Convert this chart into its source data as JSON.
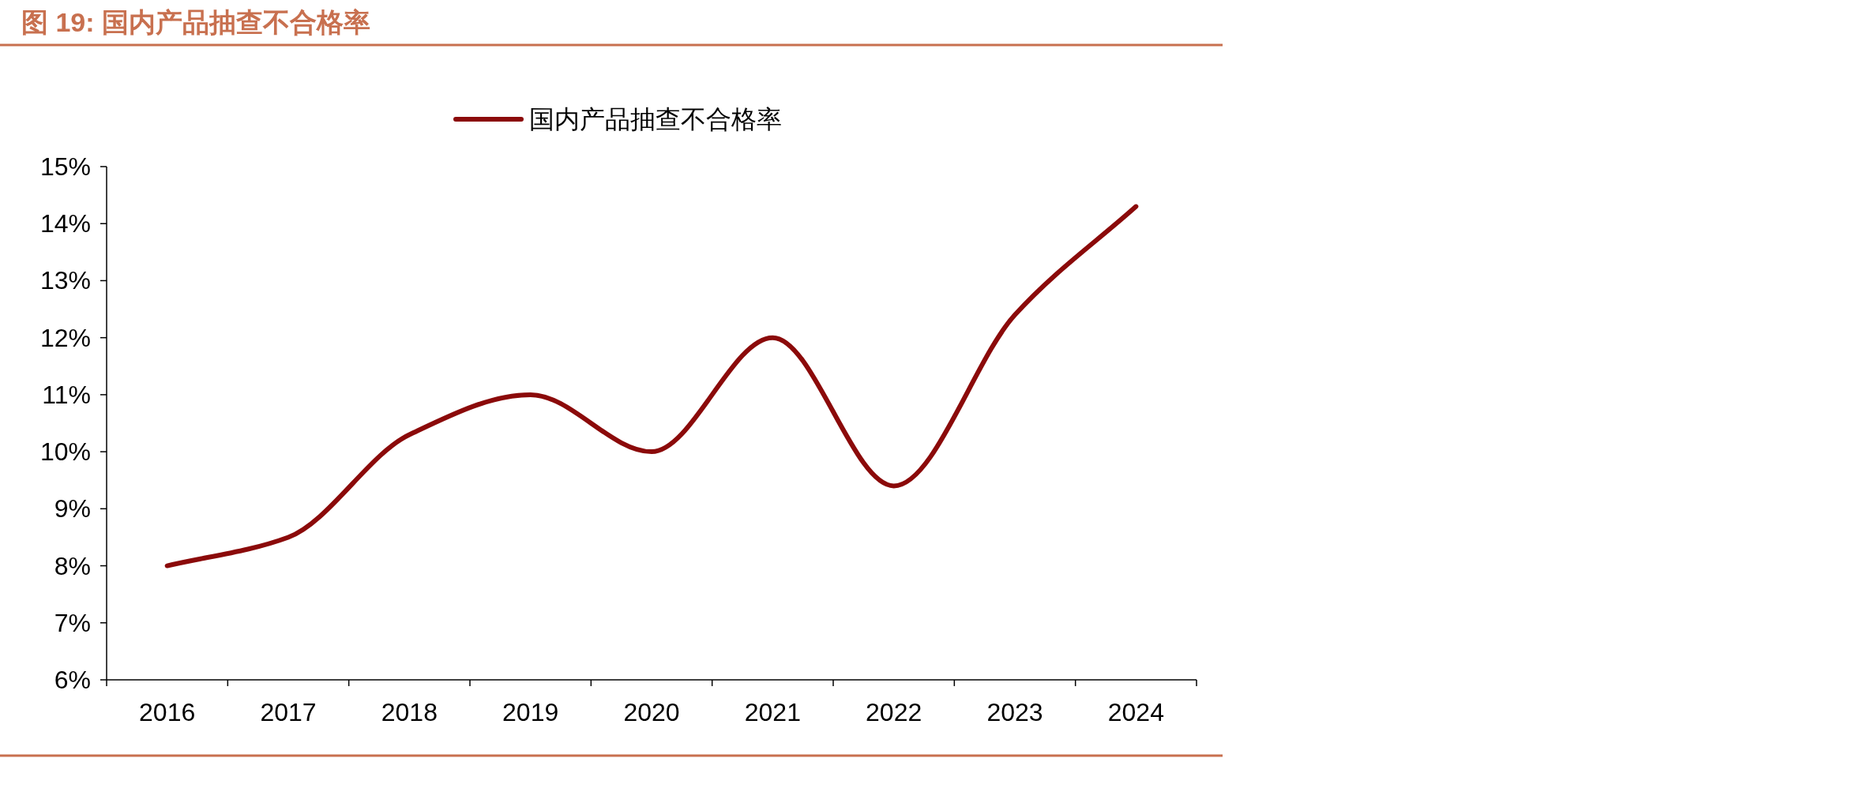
{
  "chart_data": {
    "type": "line",
    "title": "图 19:  国内产品抽查不合格率",
    "categories": [
      "2016",
      "2017",
      "2018",
      "2019",
      "2020",
      "2021",
      "2022",
      "2023",
      "2024"
    ],
    "series": [
      {
        "name": "国内产品抽查不合格率",
        "color": "#8b0a0a",
        "values": [
          8.0,
          8.5,
          10.3,
          11.0,
          10.0,
          12.0,
          9.4,
          12.4,
          14.3
        ]
      }
    ],
    "ylim": [
      6,
      15
    ],
    "yticks": [
      {
        "value": 6,
        "label": "6%"
      },
      {
        "value": 7,
        "label": "7%"
      },
      {
        "value": 8,
        "label": "8%"
      },
      {
        "value": 9,
        "label": "9%"
      },
      {
        "value": 10,
        "label": "10%"
      },
      {
        "value": 11,
        "label": "11%"
      },
      {
        "value": 12,
        "label": "12%"
      },
      {
        "value": 13,
        "label": "13%"
      },
      {
        "value": 14,
        "label": "14%"
      },
      {
        "value": 15,
        "label": "15%"
      }
    ],
    "legend": "top",
    "grid": false
  }
}
